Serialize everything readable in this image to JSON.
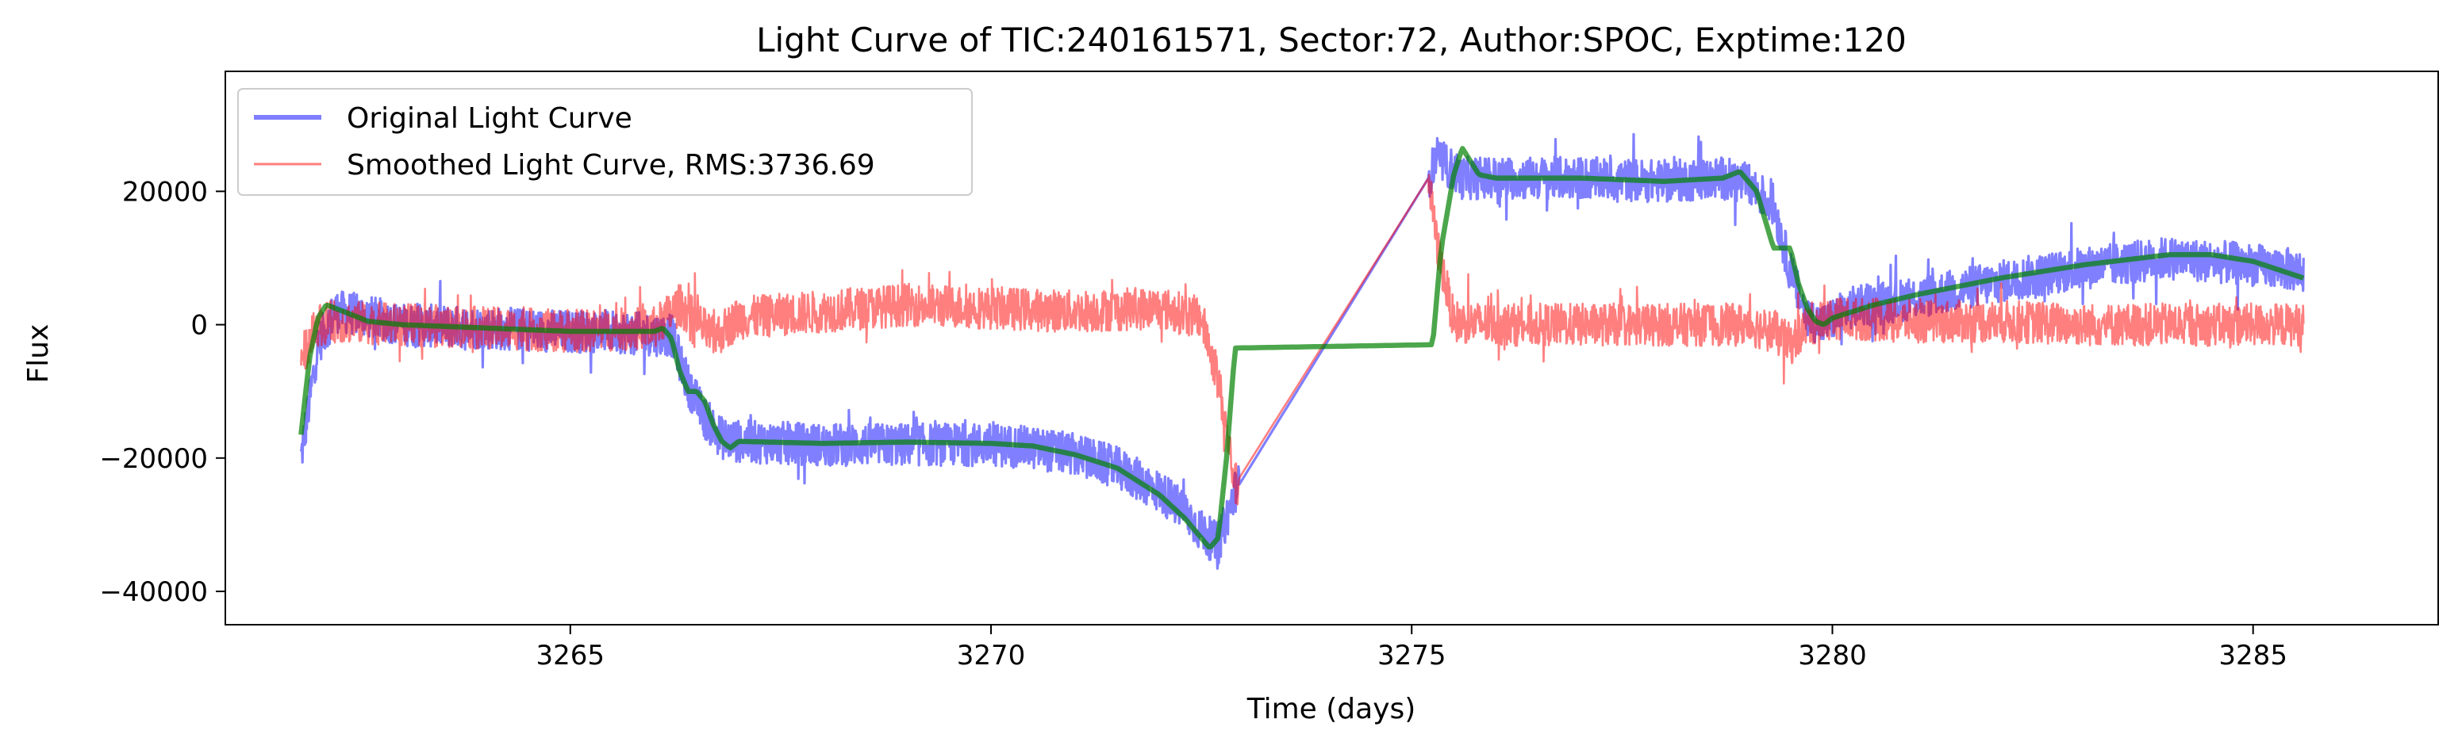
{
  "chart_data": {
    "type": "line",
    "title": "Light Curve of TIC:240161571, Sector:72, Author:SPOC, Exptime:120",
    "xlabel": "Time (days)",
    "ylabel": "Flux",
    "xlim": [
      3260.9,
      3287.2
    ],
    "ylim": [
      -45000,
      38000
    ],
    "xticks": [
      3265,
      3270,
      3275,
      3280,
      3285
    ],
    "xtick_labels": [
      "3265",
      "3270",
      "3275",
      "3280",
      "3285"
    ],
    "yticks": [
      -40000,
      -20000,
      0,
      20000
    ],
    "ytick_labels": [
      "−40000",
      "−20000",
      "0",
      "20000"
    ],
    "grid": false,
    "legend_placement": "top-left",
    "series": [
      {
        "name": "Original Light Curve",
        "color": "#0000ff",
        "alpha": 0.5,
        "noise_amplitude": 4000,
        "x": [
          3261.8,
          3262.0,
          3262.2,
          3262.5,
          3263.0,
          3264.0,
          3265.0,
          3265.5,
          3266.0,
          3266.2,
          3266.4,
          3266.6,
          3266.8,
          3267.0,
          3268.0,
          3269.0,
          3270.0,
          3270.5,
          3271.0,
          3271.5,
          3272.0,
          3272.3,
          3272.5,
          3272.7,
          3272.9,
          3275.2,
          3275.3,
          3275.6,
          3276.0,
          3277.0,
          3278.0,
          3278.7,
          3279.0,
          3279.3,
          3279.5,
          3279.7,
          3279.9,
          3280.2,
          3281.0,
          3282.0,
          3283.0,
          3284.0,
          3285.0,
          3285.6
        ],
        "y": [
          -20000,
          -3000,
          2000,
          1500,
          0,
          -500,
          -1000,
          -1000,
          -1500,
          -1500,
          -9000,
          -14000,
          -17000,
          -17500,
          -18000,
          -18000,
          -18000,
          -18500,
          -19500,
          -21500,
          -25000,
          -28000,
          -31000,
          -33000,
          -25000,
          22000,
          25000,
          22000,
          22000,
          22000,
          21500,
          22000,
          21000,
          18000,
          8000,
          1000,
          0,
          2500,
          4000,
          6500,
          8500,
          10000,
          9000,
          8000
        ]
      },
      {
        "name": "Smoothed Light Curve, RMS:3736.69",
        "color": "#ff0000",
        "alpha": 0.5,
        "noise_amplitude": 4000,
        "x": [
          3261.8,
          3262.0,
          3262.2,
          3263.0,
          3264.0,
          3265.0,
          3266.0,
          3266.3,
          3266.5,
          3266.7,
          3267.0,
          3268.0,
          3269.0,
          3270.0,
          3271.0,
          3272.0,
          3272.5,
          3272.7,
          3272.9,
          3275.2,
          3275.3,
          3275.5,
          3276.0,
          3277.0,
          3278.0,
          3279.0,
          3279.3,
          3279.5,
          3279.7,
          3280.0,
          3281.0,
          3282.0,
          3283.0,
          3284.0,
          3285.0,
          3285.6
        ],
        "y": [
          -5000,
          0,
          500,
          0,
          -500,
          -1000,
          -500,
          3000,
          500,
          -2000,
          1000,
          2000,
          3000,
          2500,
          2000,
          2500,
          1000,
          -8000,
          -24000,
          22000,
          12000,
          500,
          0,
          0,
          0,
          0,
          -1000,
          -3000,
          0,
          1000,
          500,
          500,
          0,
          0,
          0,
          0
        ]
      },
      {
        "name": "",
        "color": "#008000",
        "alpha": 0.7,
        "noise_amplitude": 0,
        "x": [
          3261.8,
          3261.9,
          3262.0,
          3262.1,
          3262.2,
          3262.4,
          3262.6,
          3263.0,
          3264.0,
          3265.0,
          3265.5,
          3266.0,
          3266.1,
          3266.2,
          3266.3,
          3266.4,
          3266.5,
          3266.6,
          3266.7,
          3266.8,
          3266.9,
          3267.0,
          3268.0,
          3269.0,
          3270.0,
          3270.5,
          3271.0,
          3271.5,
          3272.0,
          3272.3,
          3272.5,
          3272.6,
          3272.7,
          3272.8,
          3272.9,
          3275.25,
          3275.35,
          3275.5,
          3275.6,
          3275.8,
          3276.0,
          3277.0,
          3278.0,
          3278.7,
          3278.9,
          3279.1,
          3279.3,
          3279.5,
          3279.6,
          3279.7,
          3279.8,
          3279.9,
          3280.0,
          3280.5,
          3281.0,
          3282.0,
          3283.0,
          3284.0,
          3284.5,
          3285.0,
          3285.6
        ],
        "y": [
          -16500,
          -5000,
          1000,
          3000,
          2500,
          1500,
          500,
          0,
          -500,
          -1000,
          -1000,
          -1000,
          -500,
          -2000,
          -7000,
          -10000,
          -10000,
          -11500,
          -15000,
          -17500,
          -18500,
          -17500,
          -17800,
          -17600,
          -17800,
          -18200,
          -19500,
          -21500,
          -25500,
          -29000,
          -32000,
          -33500,
          -32000,
          -20000,
          -3500,
          -3000,
          11500,
          22500,
          26500,
          22500,
          22000,
          22000,
          21500,
          22000,
          23000,
          20000,
          11500,
          11500,
          6000,
          2500,
          500,
          0,
          1000,
          3000,
          4500,
          7000,
          9000,
          10500,
          10500,
          9500,
          7000
        ]
      }
    ]
  }
}
